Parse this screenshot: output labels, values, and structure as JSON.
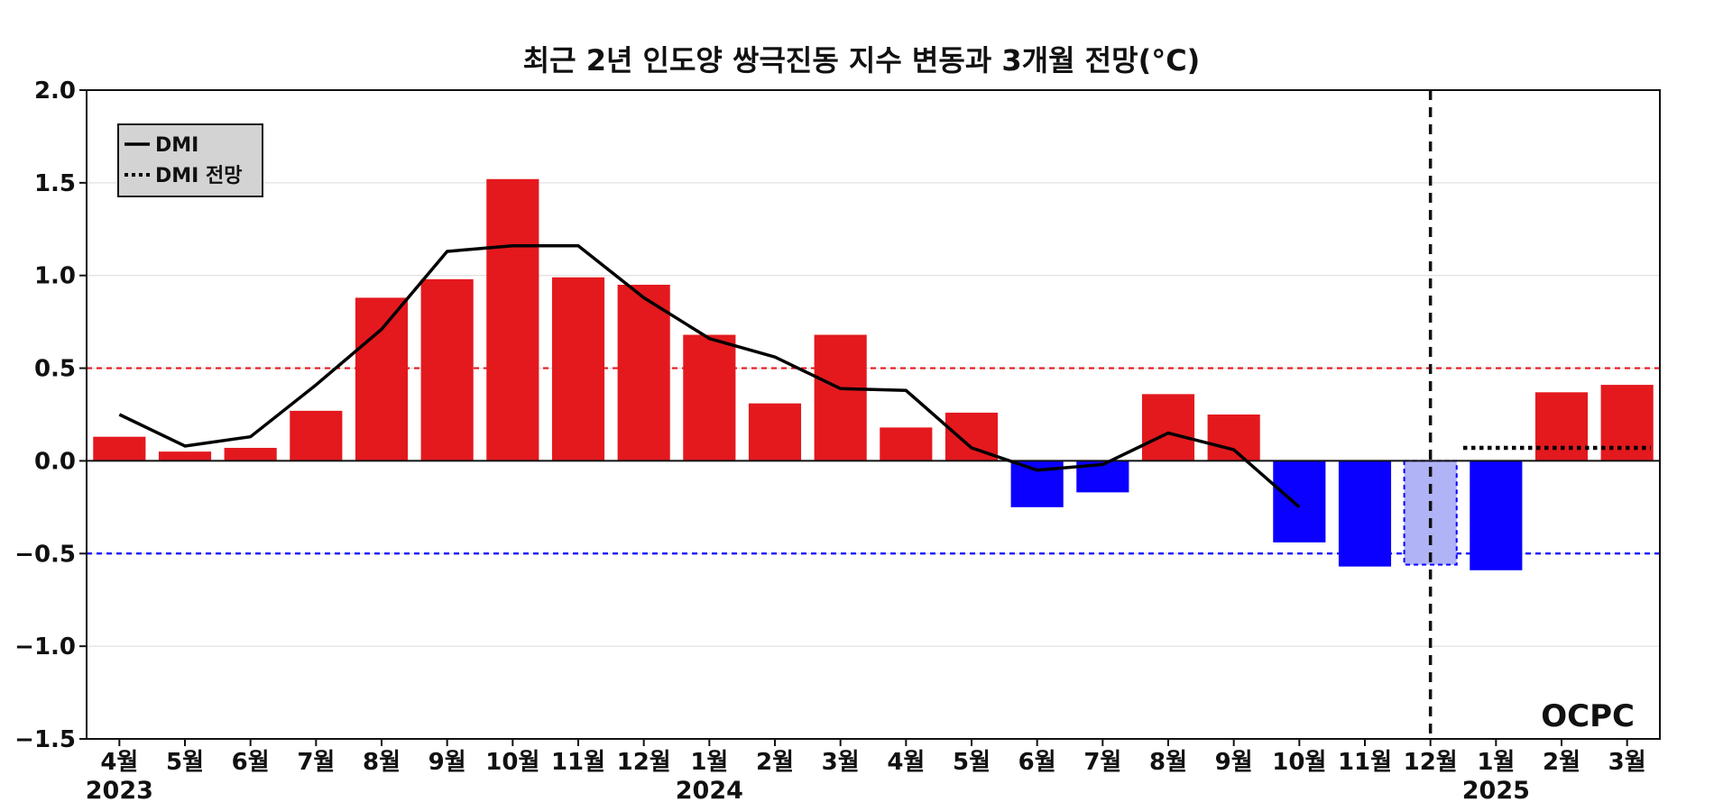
{
  "chart_data": {
    "type": "bar",
    "title": "최근 2년 인도양 쌍극진동 지수 변동과 3개월 전망(°C)",
    "xlabel": "",
    "ylabel": "",
    "ylim": [
      -1.5,
      2.0
    ],
    "yticks": [
      "2.0",
      "1.5",
      "1.0",
      "0.5",
      "0.0",
      "−0.5",
      "−1.0",
      "−1.5"
    ],
    "categories": [
      "4월",
      "5월",
      "6월",
      "7월",
      "8월",
      "9월",
      "10월",
      "11월",
      "12월",
      "1월",
      "2월",
      "3월",
      "4월",
      "5월",
      "6월",
      "7월",
      "8월",
      "9월",
      "10월",
      "11월",
      "12월",
      "1월",
      "2월",
      "3월"
    ],
    "year_labels": [
      {
        "label": "2023",
        "category_index": 0
      },
      {
        "label": "2024",
        "category_index": 9
      },
      {
        "label": "2025",
        "category_index": 21
      }
    ],
    "bars": {
      "values": [
        0.13,
        0.05,
        0.07,
        0.27,
        0.88,
        0.98,
        1.52,
        0.99,
        0.95,
        0.68,
        0.31,
        0.68,
        0.18,
        0.26,
        -0.25,
        -0.17,
        0.36,
        0.25,
        -0.44,
        -0.57,
        -0.56,
        -0.59,
        0.37,
        0.41
      ],
      "highlight_index": 20
    },
    "series": [
      {
        "name": "DMI",
        "style": "solid",
        "values": [
          0.25,
          0.08,
          0.13,
          0.41,
          0.71,
          1.13,
          1.16,
          1.16,
          0.88,
          0.66,
          0.56,
          0.39,
          0.38,
          0.07,
          -0.05,
          -0.02,
          0.15,
          0.06,
          -0.25,
          null,
          null,
          null,
          null,
          null
        ]
      },
      {
        "name": "DMI 전망",
        "style": "dotted",
        "values": [
          null,
          null,
          null,
          null,
          null,
          null,
          null,
          null,
          null,
          null,
          null,
          null,
          null,
          null,
          null,
          null,
          null,
          null,
          null,
          null,
          null,
          0.07,
          0.07,
          0.07
        ]
      }
    ],
    "thresholds": [
      0.5,
      -0.5
    ],
    "current_month_index": 20,
    "legend_position": "top-left",
    "grid": true,
    "colors": {
      "positive": "#e3191e",
      "negative": "#0a00ff",
      "highlight": "#b0b3f5",
      "line": "#000000",
      "upper_threshold": "#e3191e",
      "lower_threshold": "#0a00ff",
      "grid": "#d9d9d9",
      "legend_bg": "#d3d3d3"
    }
  },
  "logo": {
    "text": "OCPC",
    "color": "#1a6bb8"
  }
}
